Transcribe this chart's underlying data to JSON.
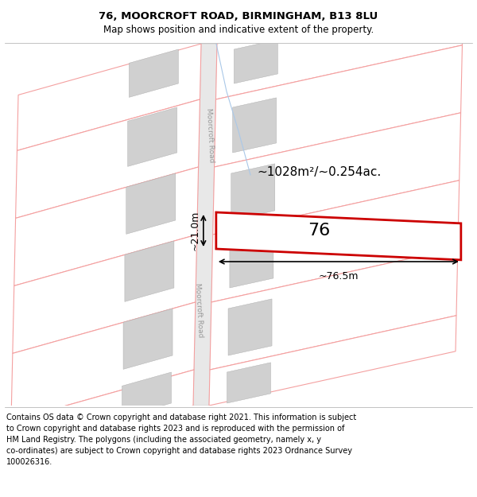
{
  "title_line1": "76, MOORCROFT ROAD, BIRMINGHAM, B13 8LU",
  "title_line2": "Map shows position and indicative extent of the property.",
  "footer_lines": [
    "Contains OS data © Crown copyright and database right 2021. This information is subject",
    "to Crown copyright and database rights 2023 and is reproduced with the permission of",
    "HM Land Registry. The polygons (including the associated geometry, namely x, y",
    "co-ordinates) are subject to Crown copyright and database rights 2023 Ordnance Survey",
    "100026316."
  ],
  "area_label": "~1028m²/~0.254ac.",
  "width_label": "~76.5m",
  "height_label": "~21.0m",
  "property_number": "76",
  "road_label_upper": "Moorcroft Road",
  "road_label_lower": "Moorcroft Road",
  "bg_color": "#ffffff",
  "plot_border_color": "#cc0000",
  "pink_line_color": "#f4a0a0",
  "gray_fill": "#d0d0d0",
  "title_fontsize": 9.5,
  "subtitle_fontsize": 8.5,
  "footer_fontsize": 7.0,
  "label_fontsize": 11,
  "number_fontsize": 16,
  "figsize": [
    6.0,
    6.25
  ],
  "dpi": 100
}
